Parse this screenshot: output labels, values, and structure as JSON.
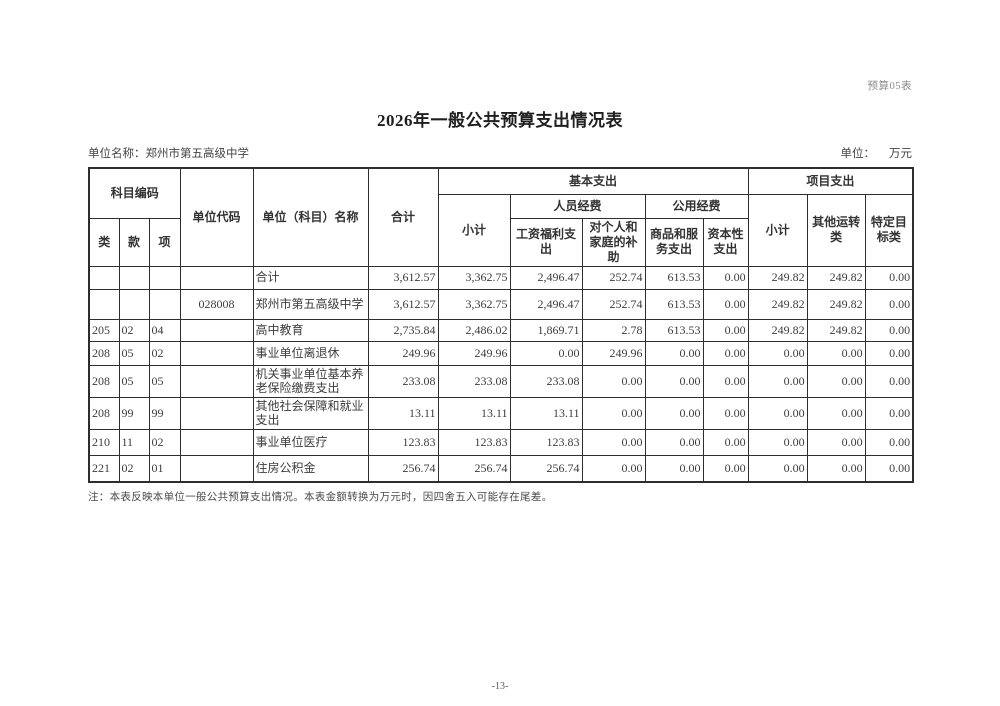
{
  "page": {
    "form_label": "预算05表",
    "title": "2026年一般公共预算支出情况表",
    "unit_name_label": "单位名称：",
    "unit_name": "郑州市第五高级中学",
    "unit_label": "单位：",
    "unit_value": "万元",
    "note": "注：本表反映本单位一般公共预算支出情况。本表金额转换为万元时，因四舍五入可能存在尾差。",
    "page_number": "-13-"
  },
  "table": {
    "header": {
      "subject_code": "科目编码",
      "cls": "类",
      "section": "款",
      "item": "项",
      "unit_code": "单位代码",
      "unit_subject_name": "单位（科目）名称",
      "total": "合计",
      "basic": "基本支出",
      "basic_subtotal": "小计",
      "personnel": "人员经费",
      "wages": "工资福利支出",
      "family": "对个人和家庭的补助",
      "public": "公用经费",
      "goods": "商品和服务支出",
      "capital": "资本性支出",
      "project": "项目支出",
      "project_subtotal": "小计",
      "other_operation": "其他运转类",
      "specific_goal": "特定目标类"
    },
    "rows": [
      {
        "cls": "",
        "sec": "",
        "itm": "",
        "unit_code": "",
        "name": "合计",
        "values": [
          "3,612.57",
          "3,362.75",
          "2,496.47",
          "252.74",
          "613.53",
          "0.00",
          "249.82",
          "249.82",
          "0.00"
        ]
      },
      {
        "cls": "",
        "sec": "",
        "itm": "",
        "unit_code": "028008",
        "name": "郑州市第五高级中学",
        "values": [
          "3,612.57",
          "3,362.75",
          "2,496.47",
          "252.74",
          "613.53",
          "0.00",
          "249.82",
          "249.82",
          "0.00"
        ]
      },
      {
        "cls": "205",
        "sec": "02",
        "itm": "04",
        "unit_code": "",
        "name": "高中教育",
        "values": [
          "2,735.84",
          "2,486.02",
          "1,869.71",
          "2.78",
          "613.53",
          "0.00",
          "249.82",
          "249.82",
          "0.00"
        ]
      },
      {
        "cls": "208",
        "sec": "05",
        "itm": "02",
        "unit_code": "",
        "name": "事业单位离退休",
        "values": [
          "249.96",
          "249.96",
          "0.00",
          "249.96",
          "0.00",
          "0.00",
          "0.00",
          "0.00",
          "0.00"
        ]
      },
      {
        "cls": "208",
        "sec": "05",
        "itm": "05",
        "unit_code": "",
        "name": "机关事业单位基本养老保险缴费支出",
        "values": [
          "233.08",
          "233.08",
          "233.08",
          "0.00",
          "0.00",
          "0.00",
          "0.00",
          "0.00",
          "0.00"
        ]
      },
      {
        "cls": "208",
        "sec": "99",
        "itm": "99",
        "unit_code": "",
        "name": "其他社会保障和就业支出",
        "values": [
          "13.11",
          "13.11",
          "13.11",
          "0.00",
          "0.00",
          "0.00",
          "0.00",
          "0.00",
          "0.00"
        ]
      },
      {
        "cls": "210",
        "sec": "11",
        "itm": "02",
        "unit_code": "",
        "name": "事业单位医疗",
        "values": [
          "123.83",
          "123.83",
          "123.83",
          "0.00",
          "0.00",
          "0.00",
          "0.00",
          "0.00",
          "0.00"
        ]
      },
      {
        "cls": "221",
        "sec": "02",
        "itm": "01",
        "unit_code": "",
        "name": "住房公积金",
        "values": [
          "256.74",
          "256.74",
          "256.74",
          "0.00",
          "0.00",
          "0.00",
          "0.00",
          "0.00",
          "0.00"
        ]
      }
    ]
  }
}
